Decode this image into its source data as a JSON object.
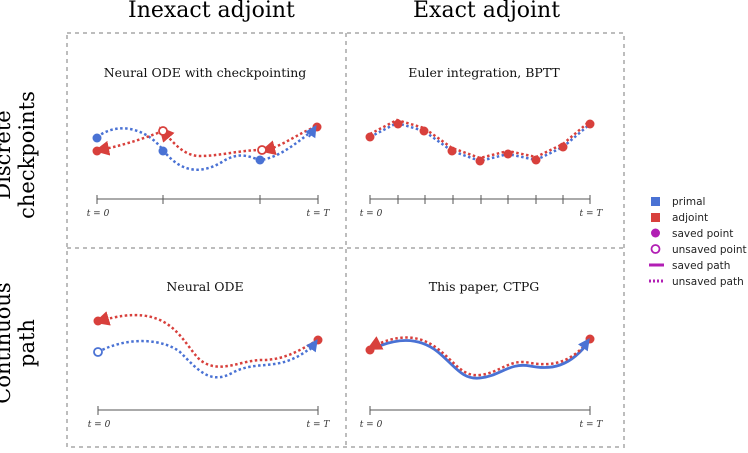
{
  "headers": {
    "col1": "Inexact adjoint",
    "col2": "Exact adjoint"
  },
  "rows": {
    "row1_line1": "Discrete",
    "row1_line2": "checkpoints",
    "row2_line1": "Continuous",
    "row2_line2": "path"
  },
  "panels": {
    "p11": "Neural ODE with checkpointing",
    "p12": "Euler integration, BPTT",
    "p21": "Neural ODE",
    "p22": "This paper, CTPG"
  },
  "axis": {
    "t0": "t = 0",
    "tT": "t = T"
  },
  "legend": [
    {
      "label": "primal",
      "icon": "square-icon",
      "color": "#4a72d4"
    },
    {
      "label": "adjoint",
      "icon": "square-icon",
      "color": "#d8403c"
    },
    {
      "label": "saved point",
      "icon": "filled-circle-icon",
      "color": "#b21eb4"
    },
    {
      "label": "unsaved point",
      "icon": "hollow-circle-icon",
      "color": "#b21eb4"
    },
    {
      "label": "saved path",
      "icon": "solid-line-icon",
      "color": "#b21eb4"
    },
    {
      "label": "unsaved path",
      "icon": "dotted-line-icon",
      "color": "#b21eb4"
    }
  ],
  "colors": {
    "primal": "#4a72d4",
    "adjoint": "#d8403c",
    "legend_accent": "#b21eb4",
    "frame": "#bdbdbd"
  }
}
